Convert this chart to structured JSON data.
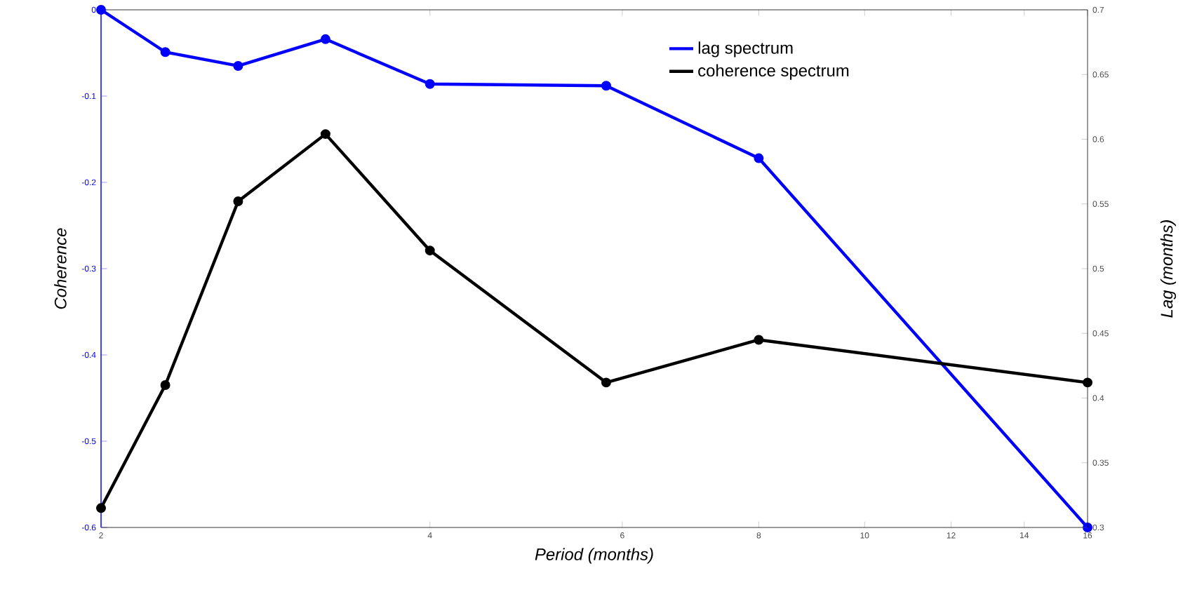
{
  "chart_data": {
    "type": "line",
    "xlabel": "Period (months)",
    "ylabel": "Coherence",
    "y2label": "Lag (months)",
    "log": "x",
    "x": [
      2,
      2.29,
      2.67,
      3.21,
      4,
      5.8,
      8,
      16
    ],
    "xlim": [
      2,
      16
    ],
    "xticks": [
      2,
      4,
      6,
      8,
      10,
      12,
      14,
      16
    ],
    "ylim": [
      -0.6,
      0
    ],
    "yticks": [
      -0.6,
      -0.5,
      -0.4,
      -0.3,
      -0.2,
      -0.1,
      0
    ],
    "y2lim": [
      0.3,
      0.7
    ],
    "y2ticks": [
      0.3,
      0.35,
      0.4,
      0.45,
      0.5,
      0.55,
      0.6,
      0.65,
      0.7
    ],
    "legend": "top right",
    "marker": "circle",
    "line_style": "solid",
    "series": [
      {
        "name": "lag spectrum",
        "color": "#0000ff",
        "values": [
          0,
          -0.049,
          -0.065,
          -0.034,
          -0.086,
          -0.088,
          -0.172,
          -0.6
        ]
      },
      {
        "name": "coherence spectrum",
        "color": "#000000",
        "axis": "y2",
        "values": [
          0.315,
          0.41,
          0.552,
          0.604,
          0.514,
          0.412,
          0.445,
          0.412
        ]
      }
    ]
  }
}
